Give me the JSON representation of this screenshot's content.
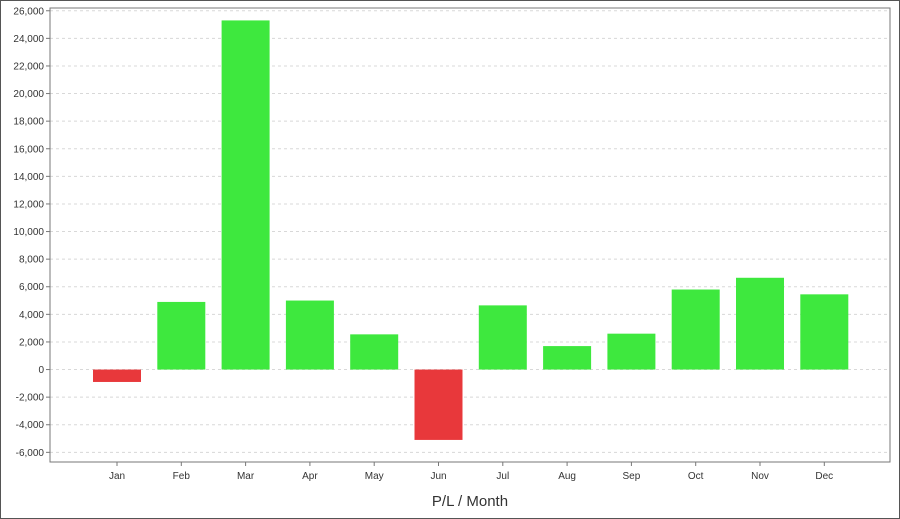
{
  "chart_data": {
    "type": "bar",
    "title": "",
    "xlabel": "P/L / Month",
    "ylabel": "",
    "categories": [
      "Jan",
      "Feb",
      "Mar",
      "Apr",
      "May",
      "Jun",
      "Jul",
      "Aug",
      "Sep",
      "Oct",
      "Nov",
      "Dec"
    ],
    "values": [
      -900,
      4900,
      25300,
      5000,
      2550,
      -5100,
      4650,
      1700,
      2600,
      5800,
      6650,
      5450
    ],
    "ylim": [
      -6700,
      26200
    ],
    "yticks": [
      26000,
      24000,
      22000,
      20000,
      18000,
      16000,
      14000,
      12000,
      10000,
      8000,
      6000,
      4000,
      2000,
      0,
      -2000,
      -4000,
      -6000
    ],
    "ytick_labels": [
      "26,000",
      "24,000",
      "22,000",
      "20,000",
      "18,000",
      "16,000",
      "14,000",
      "12,000",
      "10,000",
      "8,000",
      "6,000",
      "4,000",
      "2,000",
      "0",
      "-2,000",
      "-4,000",
      "-6,000"
    ],
    "grid": true,
    "legend": "none",
    "colors": {
      "positive": "#3ee83e",
      "negative": "#e8383b",
      "grid": "#d8d8d8",
      "axis": "#777777"
    }
  }
}
